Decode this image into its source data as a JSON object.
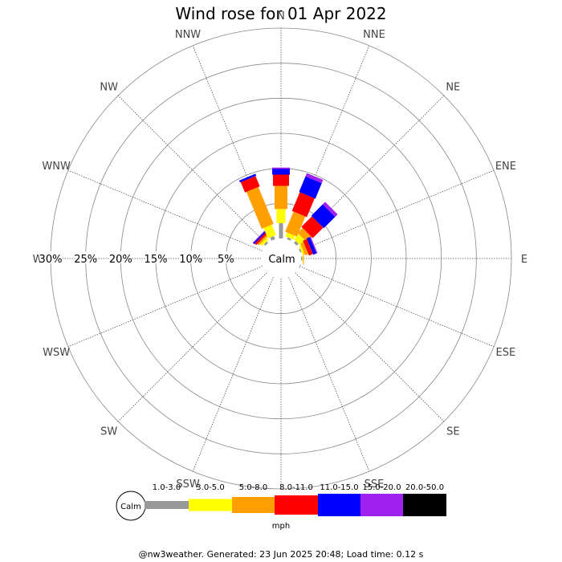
{
  "chart_data": {
    "type": "wind-rose",
    "title": "Wind rose for 01 Apr 2022",
    "directions": [
      "N",
      "NNE",
      "NE",
      "ENE",
      "E",
      "ESE",
      "SE",
      "SSE",
      "S",
      "SSW",
      "SW",
      "WSW",
      "W",
      "WNW",
      "NW",
      "NNW"
    ],
    "ring_labels": [
      "30%",
      "25%",
      "20%",
      "15%",
      "10%",
      "5%"
    ],
    "rmax_percent": 30,
    "calm_label": "Calm",
    "unit_label": "mph",
    "speed_bins": [
      "1.0-3.0",
      "3.0-5.0",
      "5.0-8.0",
      "8.0-11.0",
      "11.0-15.0",
      "15.0-20.0",
      "20.0-50.0"
    ],
    "bin_colors": [
      "#999999",
      "#ffff00",
      "#ffa000",
      "#ff0000",
      "#0000ff",
      "#a020f0",
      "#000000"
    ],
    "series": [
      {
        "direction": "N",
        "values": [
          2.2,
          2.0,
          3.3,
          1.6,
          0.8,
          0.2,
          0
        ]
      },
      {
        "direction": "NNE",
        "values": [
          0.3,
          0.6,
          3.1,
          2.9,
          2.4,
          0.5,
          0
        ]
      },
      {
        "direction": "NE",
        "values": [
          0.4,
          1.0,
          1.0,
          2.1,
          2.3,
          0.5,
          0
        ]
      },
      {
        "direction": "ENE",
        "values": [
          0.2,
          0.3,
          0.5,
          0.6,
          0.5,
          0.15,
          0
        ]
      },
      {
        "direction": "E",
        "values": [
          0.2,
          0.1,
          0.1,
          0,
          0,
          0,
          0
        ]
      },
      {
        "direction": "ESE",
        "values": [
          0.1,
          0,
          0,
          0,
          0,
          0,
          0
        ]
      },
      {
        "direction": "SE",
        "values": [
          0,
          0,
          0,
          0,
          0,
          0,
          0
        ]
      },
      {
        "direction": "SSE",
        "values": [
          0,
          0,
          0,
          0,
          0,
          0,
          0
        ]
      },
      {
        "direction": "S",
        "values": [
          0,
          0,
          0,
          0,
          0,
          0,
          0
        ]
      },
      {
        "direction": "SSW",
        "values": [
          0,
          0,
          0,
          0,
          0,
          0,
          0
        ]
      },
      {
        "direction": "SW",
        "values": [
          0,
          0,
          0,
          0,
          0,
          0,
          0
        ]
      },
      {
        "direction": "WSW",
        "values": [
          0,
          0,
          0,
          0,
          0,
          0,
          0
        ]
      },
      {
        "direction": "W",
        "values": [
          0,
          0,
          0,
          0,
          0,
          0,
          0
        ]
      },
      {
        "direction": "WNW",
        "values": [
          0,
          0,
          0,
          0,
          0,
          0,
          0
        ]
      },
      {
        "direction": "NW",
        "values": [
          0.3,
          0.4,
          0.3,
          0.3,
          0.2,
          0.1,
          0
        ]
      },
      {
        "direction": "NNW",
        "values": [
          0.5,
          1.6,
          5.7,
          1.6,
          0.3,
          0,
          0
        ]
      }
    ]
  },
  "footer": "@nw3weather. Generated: 23 Jun 2025 20:48; Load time: 0.12 s"
}
